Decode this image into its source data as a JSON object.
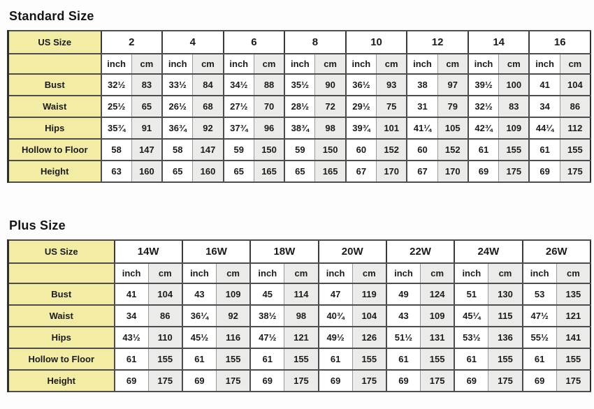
{
  "page_title": "Dress size chart",
  "colors": {
    "label_bg": "#F2ECA5",
    "cm_col_bg": "#EBEBE9",
    "inch_col_bg": "#FFFFFF",
    "border_dark": "#2F2F2F",
    "border_mid": "#4D4D4D",
    "border_light": "#9A9A98",
    "text": "#1B1B1B"
  },
  "chart_data": [
    {
      "type": "table",
      "title": "Standard Size",
      "corner_label": "US Size",
      "unit_headers": [
        "inch",
        "cm"
      ],
      "sizes": [
        "2",
        "4",
        "6",
        "8",
        "10",
        "12",
        "14",
        "16"
      ],
      "rows": [
        {
          "label": "Bust",
          "pairs": [
            [
              "32½",
              "83"
            ],
            [
              "33½",
              "84"
            ],
            [
              "34½",
              "88"
            ],
            [
              "35½",
              "90"
            ],
            [
              "36½",
              "93"
            ],
            [
              "38",
              "97"
            ],
            [
              "39½",
              "100"
            ],
            [
              "41",
              "104"
            ]
          ]
        },
        {
          "label": "Waist",
          "pairs": [
            [
              "25½",
              "65"
            ],
            [
              "26½",
              "68"
            ],
            [
              "27½",
              "70"
            ],
            [
              "28½",
              "72"
            ],
            [
              "29½",
              "75"
            ],
            [
              "31",
              "79"
            ],
            [
              "32½",
              "83"
            ],
            [
              "34",
              "86"
            ]
          ]
        },
        {
          "label": "Hips",
          "pairs": [
            [
              "35¾",
              "91"
            ],
            [
              "36¾",
              "92"
            ],
            [
              "37¾",
              "96"
            ],
            [
              "38¾",
              "98"
            ],
            [
              "39¾",
              "101"
            ],
            [
              "41¼",
              "105"
            ],
            [
              "42¾",
              "109"
            ],
            [
              "44¼",
              "112"
            ]
          ]
        },
        {
          "label": "Hollow to Floor",
          "pairs": [
            [
              "58",
              "147"
            ],
            [
              "58",
              "147"
            ],
            [
              "59",
              "150"
            ],
            [
              "59",
              "150"
            ],
            [
              "60",
              "152"
            ],
            [
              "60",
              "152"
            ],
            [
              "61",
              "155"
            ],
            [
              "61",
              "155"
            ]
          ]
        },
        {
          "label": "Height",
          "pairs": [
            [
              "63",
              "160"
            ],
            [
              "65",
              "160"
            ],
            [
              "65",
              "165"
            ],
            [
              "65",
              "165"
            ],
            [
              "67",
              "170"
            ],
            [
              "67",
              "170"
            ],
            [
              "69",
              "175"
            ],
            [
              "69",
              "175"
            ]
          ]
        }
      ]
    },
    {
      "type": "table",
      "title": "Plus Size",
      "corner_label": "US Size",
      "unit_headers": [
        "inch",
        "cm"
      ],
      "sizes": [
        "14W",
        "16W",
        "18W",
        "20W",
        "22W",
        "24W",
        "26W"
      ],
      "rows": [
        {
          "label": "Bust",
          "pairs": [
            [
              "41",
              "104"
            ],
            [
              "43",
              "109"
            ],
            [
              "45",
              "114"
            ],
            [
              "47",
              "119"
            ],
            [
              "49",
              "124"
            ],
            [
              "51",
              "130"
            ],
            [
              "53",
              "135"
            ]
          ]
        },
        {
          "label": "Waist",
          "pairs": [
            [
              "34",
              "86"
            ],
            [
              "36¼",
              "92"
            ],
            [
              "38½",
              "98"
            ],
            [
              "40¾",
              "104"
            ],
            [
              "43",
              "109"
            ],
            [
              "45¼",
              "115"
            ],
            [
              "47½",
              "121"
            ]
          ]
        },
        {
          "label": "Hips",
          "pairs": [
            [
              "43½",
              "110"
            ],
            [
              "45½",
              "116"
            ],
            [
              "47½",
              "121"
            ],
            [
              "49½",
              "126"
            ],
            [
              "51½",
              "131"
            ],
            [
              "53½",
              "136"
            ],
            [
              "55½",
              "141"
            ]
          ]
        },
        {
          "label": "Hollow to Floor",
          "pairs": [
            [
              "61",
              "155"
            ],
            [
              "61",
              "155"
            ],
            [
              "61",
              "155"
            ],
            [
              "61",
              "155"
            ],
            [
              "61",
              "155"
            ],
            [
              "61",
              "155"
            ],
            [
              "61",
              "155"
            ]
          ]
        },
        {
          "label": "Height",
          "pairs": [
            [
              "69",
              "175"
            ],
            [
              "69",
              "175"
            ],
            [
              "69",
              "175"
            ],
            [
              "69",
              "175"
            ],
            [
              "69",
              "175"
            ],
            [
              "69",
              "175"
            ],
            [
              "69",
              "175"
            ]
          ]
        }
      ]
    }
  ]
}
